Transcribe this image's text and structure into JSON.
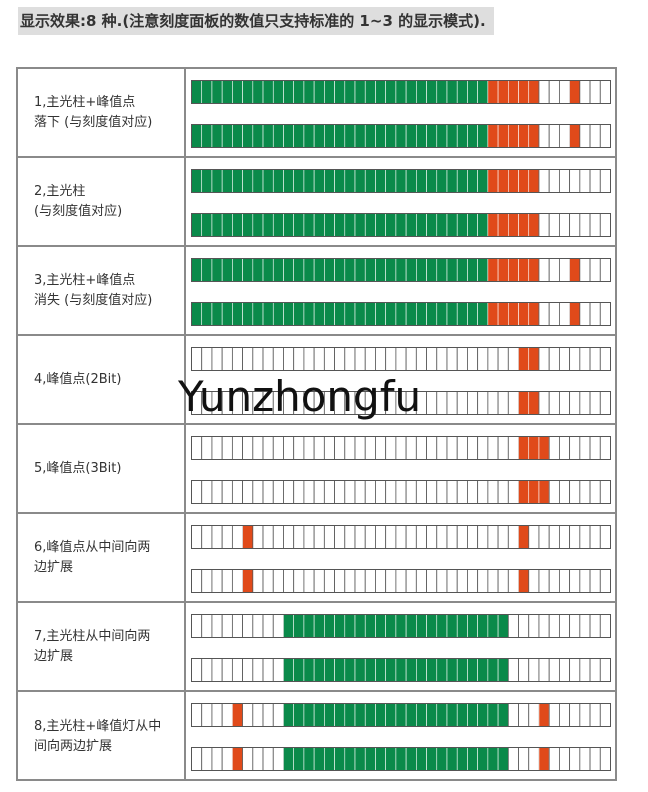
{
  "header": {
    "text": "显示效果:8 种.(注意刻度面板的数值只支持标准的 1~3 的显示模式)."
  },
  "watermark": {
    "text": "Yunzhongfu"
  },
  "colors": {
    "bar": "#0a8a4a",
    "peak": "#e04a1a",
    "empty": "#ffffff",
    "stroke": "#555555",
    "divider": "#ffffff"
  },
  "segments_per_meter": 41,
  "modes": [
    {
      "label": "1,主光柱+峰值点\n落下 (与刻度值对应)",
      "meters": [
        {
          "fill": [
            [
              0,
              29,
              "bar"
            ],
            [
              29,
              34,
              "peak"
            ],
            [
              37,
              38,
              "peak"
            ]
          ]
        },
        {
          "fill": [
            [
              0,
              29,
              "bar"
            ],
            [
              29,
              34,
              "peak"
            ],
            [
              37,
              38,
              "peak"
            ]
          ]
        }
      ]
    },
    {
      "label": "2,主光柱\n (与刻度值对应)",
      "meters": [
        {
          "fill": [
            [
              0,
              29,
              "bar"
            ],
            [
              29,
              34,
              "peak"
            ]
          ]
        },
        {
          "fill": [
            [
              0,
              29,
              "bar"
            ],
            [
              29,
              34,
              "peak"
            ]
          ]
        }
      ]
    },
    {
      "label": "3,主光柱+峰值点\n消失 (与刻度值对应)",
      "meters": [
        {
          "fill": [
            [
              0,
              29,
              "bar"
            ],
            [
              29,
              34,
              "peak"
            ],
            [
              37,
              38,
              "peak"
            ]
          ]
        },
        {
          "fill": [
            [
              0,
              29,
              "bar"
            ],
            [
              29,
              34,
              "peak"
            ],
            [
              37,
              38,
              "peak"
            ]
          ]
        }
      ]
    },
    {
      "label": "4,峰值点(2Bit)",
      "meters": [
        {
          "fill": [
            [
              32,
              34,
              "peak"
            ]
          ]
        },
        {
          "fill": [
            [
              32,
              34,
              "peak"
            ]
          ]
        }
      ]
    },
    {
      "label": "5,峰值点(3Bit)",
      "meters": [
        {
          "fill": [
            [
              32,
              35,
              "peak"
            ]
          ]
        },
        {
          "fill": [
            [
              32,
              35,
              "peak"
            ]
          ]
        }
      ]
    },
    {
      "label": "6,峰值点从中间向两\n边扩展",
      "meters": [
        {
          "fill": [
            [
              5,
              6,
              "peak"
            ],
            [
              32,
              33,
              "peak"
            ]
          ]
        },
        {
          "fill": [
            [
              5,
              6,
              "peak"
            ],
            [
              32,
              33,
              "peak"
            ]
          ]
        }
      ]
    },
    {
      "label": "7,主光柱从中间向两\n边扩展",
      "meters": [
        {
          "fill": [
            [
              9,
              31,
              "bar"
            ]
          ]
        },
        {
          "fill": [
            [
              9,
              31,
              "bar"
            ]
          ]
        }
      ]
    },
    {
      "label": "8,主光柱+峰值灯从中\n间向两边扩展",
      "meters": [
        {
          "fill": [
            [
              4,
              5,
              "peak"
            ],
            [
              9,
              31,
              "bar"
            ],
            [
              34,
              35,
              "peak"
            ]
          ]
        },
        {
          "fill": [
            [
              4,
              5,
              "peak"
            ],
            [
              9,
              31,
              "bar"
            ],
            [
              34,
              35,
              "peak"
            ]
          ]
        }
      ]
    }
  ]
}
